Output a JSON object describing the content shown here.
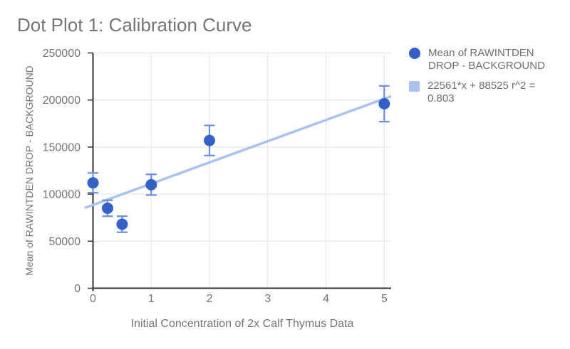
{
  "window": {
    "background": "#ffffff"
  },
  "chart_data": {
    "type": "scatter",
    "title": "Dot Plot 1: Calibration Curve",
    "xlabel": "Initial Concentration of 2x Calf Thymus Data",
    "ylabel": "Mean of RAWINTDEN DROP - BACKGROUND",
    "xlim": [
      0,
      5.12
    ],
    "ylim": [
      0,
      250000
    ],
    "xticks": [
      0,
      1,
      2,
      3,
      4,
      5
    ],
    "yticks": [
      0,
      50000,
      100000,
      150000,
      200000,
      250000
    ],
    "grid": true,
    "legend_position": "right",
    "series": [
      {
        "name": "Mean of RAWINTDEN DROP - BACKGROUND",
        "type": "points",
        "marker": "circle",
        "color": "#3461c7",
        "error_bar_color": "#6e8edd",
        "x": [
          0,
          0.25,
          0.5,
          1,
          2,
          5
        ],
        "y": [
          112000,
          85000,
          68000,
          110000,
          157000,
          196000
        ],
        "y_error": [
          10500,
          8500,
          8500,
          11000,
          16000,
          19000
        ]
      },
      {
        "name": "Trendline",
        "label": "22561*x + 88525 r^2 = 0.803",
        "type": "trendline",
        "color": "#a9c2ef",
        "slope": 22561,
        "intercept": 88525,
        "r_squared": 0.803
      }
    ],
    "colors": {
      "grid": "#e2e2e2",
      "axis": "#333333",
      "tick_text": "#757575",
      "title_text": "#757575",
      "legend_text": "#6e6e6e"
    }
  }
}
